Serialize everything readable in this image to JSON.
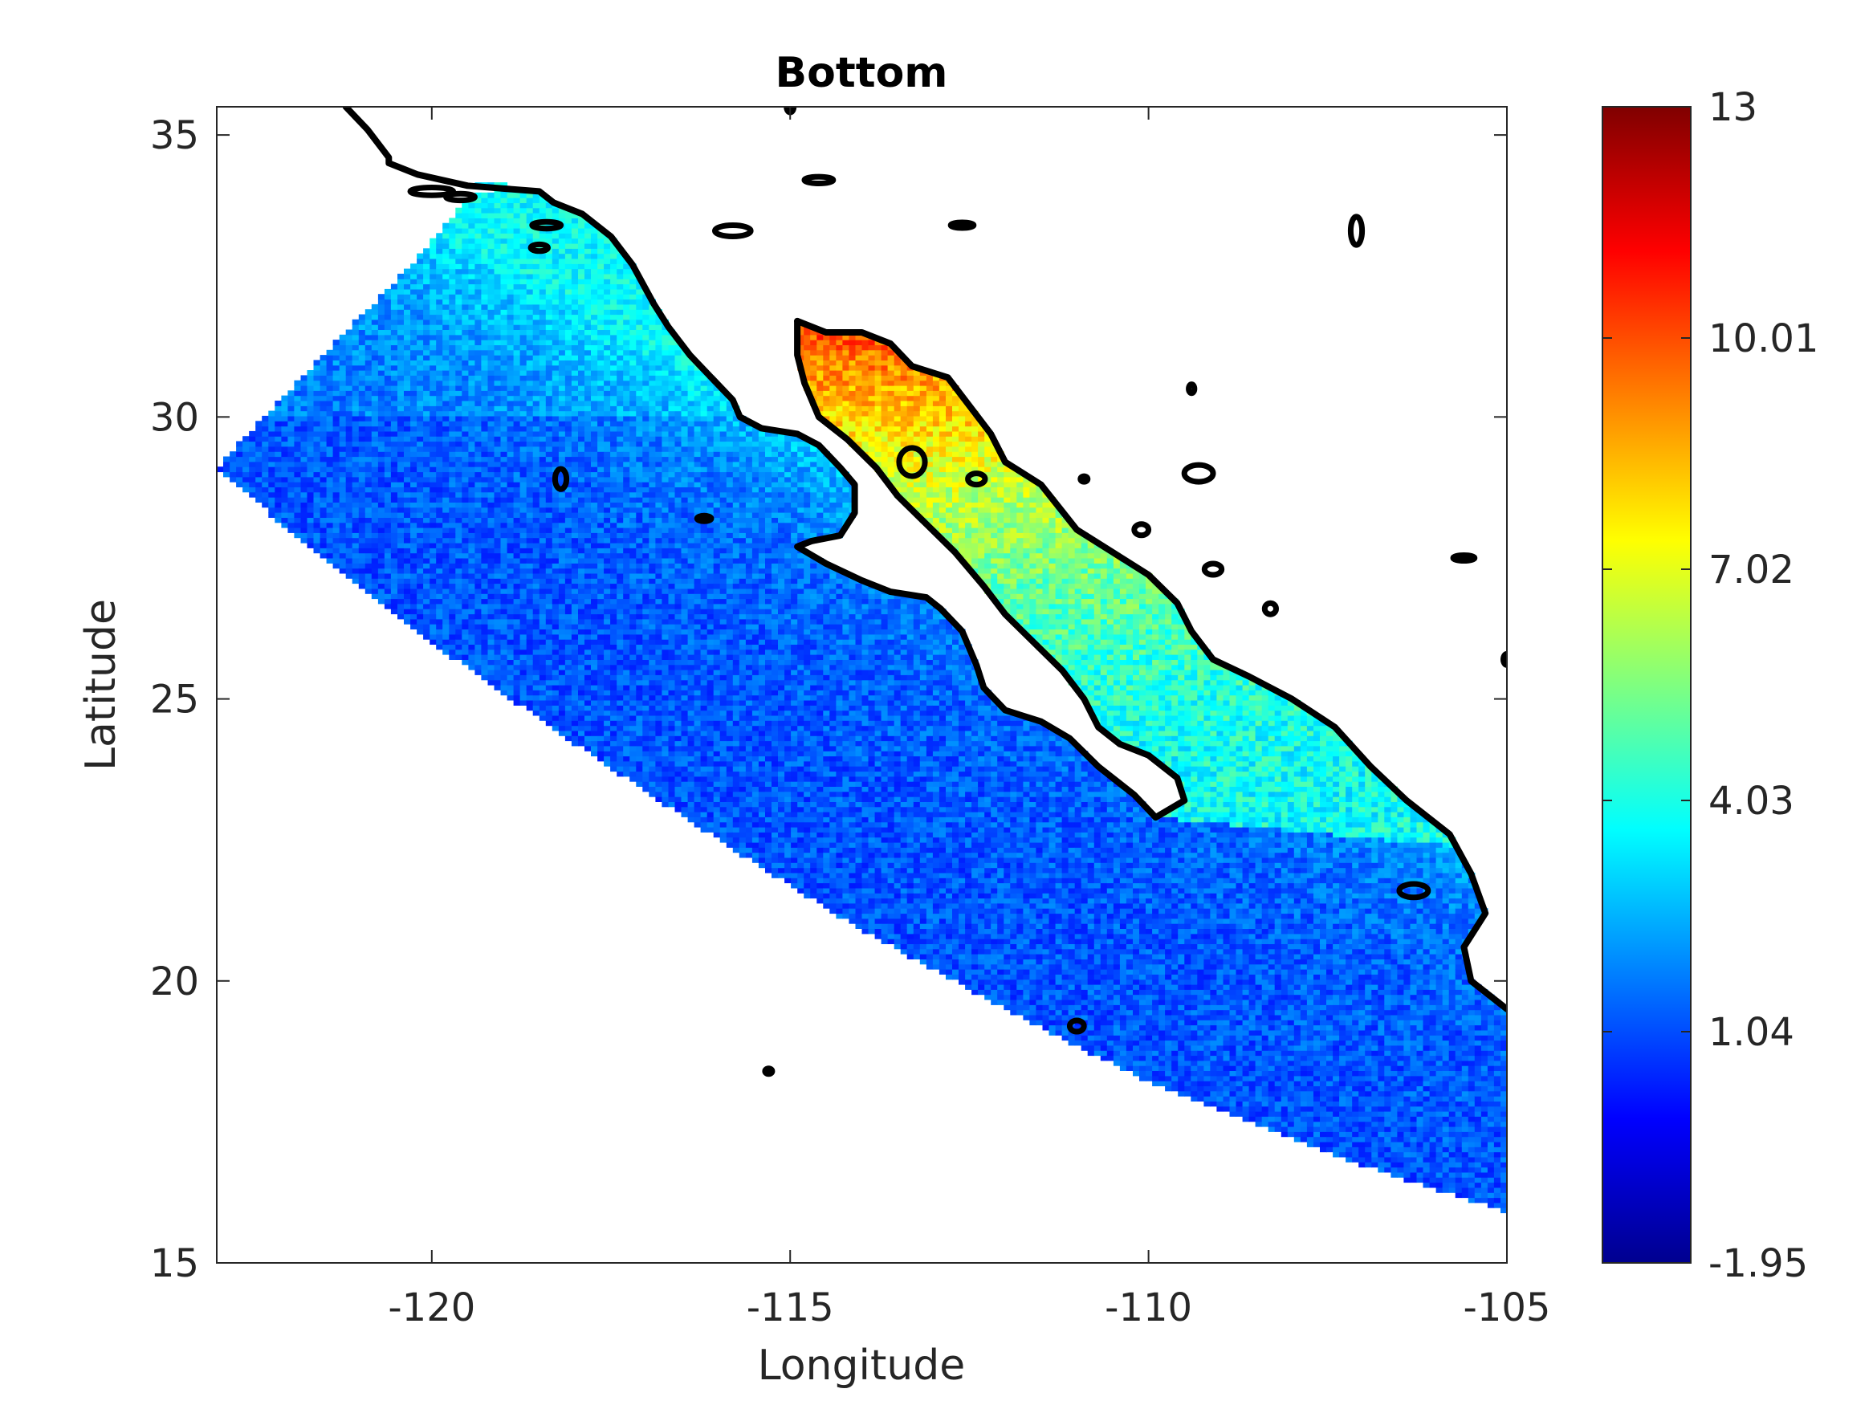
{
  "chart_data": {
    "type": "heatmap",
    "title": "Bottom",
    "xlabel": "Longitude",
    "ylabel": "Latitude",
    "xlim": [
      -123,
      -105
    ],
    "ylim": [
      15,
      35.5
    ],
    "x_ticks": [
      -120,
      -115,
      -110,
      -105
    ],
    "y_ticks": [
      15,
      20,
      25,
      30,
      35
    ],
    "x_tick_labels": [
      "-120",
      "-115",
      "-110",
      "-105"
    ],
    "y_tick_labels": [
      "15",
      "20",
      "25",
      "30",
      "35"
    ],
    "colorbar": {
      "colormap": "jet",
      "range": [
        -1.95,
        13
      ],
      "ticks": [
        -1.95,
        1.04,
        4.03,
        7.02,
        10.01,
        13
      ],
      "tick_labels": [
        "-1.95",
        "1.04",
        "4.03",
        "7.02",
        "10.01",
        "13"
      ]
    },
    "grid": false,
    "regions": [
      {
        "area": "offshore Pacific (west)",
        "typical_value": 1.6
      },
      {
        "area": "offshore Pacific (south-east)",
        "typical_value": 1.2
      },
      {
        "area": "Pacific nearshore band",
        "typical_value": 3.0
      },
      {
        "area": "northern Gulf of California",
        "typical_value": 9.5
      },
      {
        "area": "central Gulf of California",
        "typical_value": 6.3
      },
      {
        "area": "southern Gulf mouth",
        "typical_value": 4.2
      }
    ],
    "coastline_color": "#000000"
  }
}
